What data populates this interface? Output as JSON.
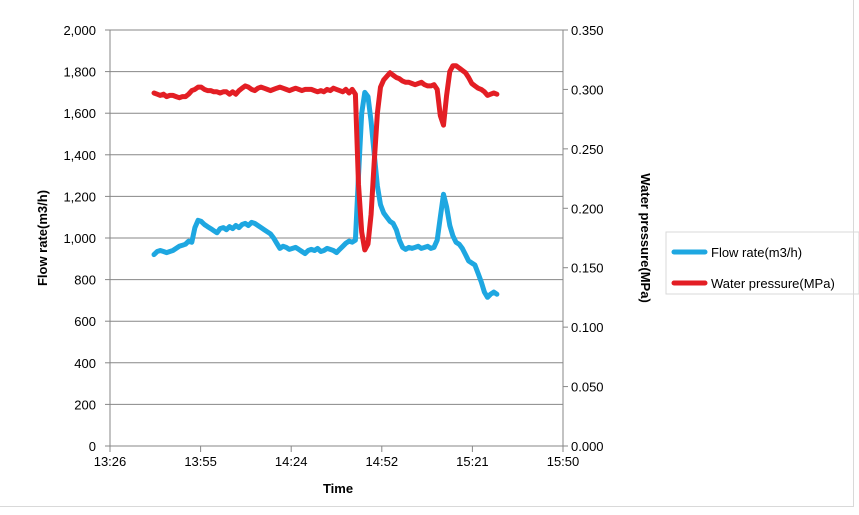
{
  "chart_data": {
    "type": "line",
    "title": "",
    "xlabel": "Time",
    "ylabel": "Flow rate(m3/h)",
    "y2label": "Water pressure(MPa)",
    "xlim_minutes": [
      806,
      950
    ],
    "ylim": [
      0,
      2000
    ],
    "y2lim": [
      0,
      0.35
    ],
    "x_ticks": [
      "13:26",
      "13:55",
      "14:24",
      "14:52",
      "15:21",
      "15:50"
    ],
    "y_ticks": [
      "0",
      "200",
      "400",
      "600",
      "800",
      "1,000",
      "1,200",
      "1,400",
      "1,600",
      "1,800",
      "2,000"
    ],
    "y2_ticks": [
      "0.000",
      "0.050",
      "0.100",
      "0.150",
      "0.200",
      "0.250",
      "0.300",
      "0.350"
    ],
    "grid": true,
    "legend_position": "right",
    "series": [
      {
        "name": "Flow rate(m3/h)",
        "axis": "left",
        "color": "#1ea7e1",
        "points": [
          [
            820,
            920
          ],
          [
            821,
            935
          ],
          [
            822,
            940
          ],
          [
            823,
            935
          ],
          [
            824,
            930
          ],
          [
            825,
            935
          ],
          [
            826,
            940
          ],
          [
            827,
            950
          ],
          [
            828,
            960
          ],
          [
            829,
            965
          ],
          [
            830,
            970
          ],
          [
            831,
            985
          ],
          [
            832,
            980
          ],
          [
            833,
            1050
          ],
          [
            834,
            1085
          ],
          [
            835,
            1080
          ],
          [
            836,
            1065
          ],
          [
            837,
            1055
          ],
          [
            838,
            1045
          ],
          [
            839,
            1035
          ],
          [
            840,
            1025
          ],
          [
            841,
            1045
          ],
          [
            842,
            1050
          ],
          [
            843,
            1040
          ],
          [
            844,
            1055
          ],
          [
            845,
            1045
          ],
          [
            846,
            1060
          ],
          [
            847,
            1050
          ],
          [
            848,
            1065
          ],
          [
            849,
            1070
          ],
          [
            850,
            1060
          ],
          [
            851,
            1075
          ],
          [
            852,
            1070
          ],
          [
            853,
            1060
          ],
          [
            854,
            1050
          ],
          [
            855,
            1040
          ],
          [
            856,
            1030
          ],
          [
            857,
            1020
          ],
          [
            858,
            1000
          ],
          [
            859,
            975
          ],
          [
            860,
            950
          ],
          [
            861,
            960
          ],
          [
            862,
            955
          ],
          [
            863,
            945
          ],
          [
            864,
            950
          ],
          [
            865,
            955
          ],
          [
            866,
            945
          ],
          [
            867,
            935
          ],
          [
            868,
            925
          ],
          [
            869,
            940
          ],
          [
            870,
            945
          ],
          [
            871,
            940
          ],
          [
            872,
            950
          ],
          [
            873,
            935
          ],
          [
            874,
            940
          ],
          [
            875,
            950
          ],
          [
            876,
            945
          ],
          [
            877,
            940
          ],
          [
            878,
            930
          ],
          [
            879,
            945
          ],
          [
            880,
            960
          ],
          [
            881,
            975
          ],
          [
            882,
            985
          ],
          [
            883,
            980
          ],
          [
            884,
            990
          ],
          [
            885,
            1300
          ],
          [
            886,
            1600
          ],
          [
            887,
            1700
          ],
          [
            888,
            1680
          ],
          [
            889,
            1560
          ],
          [
            890,
            1400
          ],
          [
            891,
            1250
          ],
          [
            892,
            1160
          ],
          [
            893,
            1120
          ],
          [
            894,
            1100
          ],
          [
            895,
            1080
          ],
          [
            896,
            1070
          ],
          [
            897,
            1040
          ],
          [
            898,
            990
          ],
          [
            899,
            955
          ],
          [
            900,
            945
          ],
          [
            901,
            955
          ],
          [
            902,
            950
          ],
          [
            903,
            955
          ],
          [
            904,
            960
          ],
          [
            905,
            950
          ],
          [
            906,
            955
          ],
          [
            907,
            960
          ],
          [
            908,
            950
          ],
          [
            909,
            955
          ],
          [
            910,
            990
          ],
          [
            911,
            1100
          ],
          [
            912,
            1210
          ],
          [
            913,
            1150
          ],
          [
            914,
            1060
          ],
          [
            915,
            1010
          ],
          [
            916,
            980
          ],
          [
            917,
            970
          ],
          [
            918,
            950
          ],
          [
            919,
            920
          ],
          [
            920,
            890
          ],
          [
            921,
            880
          ],
          [
            922,
            870
          ],
          [
            923,
            830
          ],
          [
            924,
            790
          ],
          [
            925,
            740
          ],
          [
            926,
            715
          ],
          [
            927,
            730
          ],
          [
            928,
            740
          ],
          [
            929,
            730
          ]
        ]
      },
      {
        "name": "Water pressure(MPa)",
        "axis": "right",
        "color": "#e31e24",
        "points": [
          [
            820,
            0.297
          ],
          [
            821,
            0.296
          ],
          [
            822,
            0.295
          ],
          [
            823,
            0.296
          ],
          [
            824,
            0.294
          ],
          [
            825,
            0.295
          ],
          [
            826,
            0.295
          ],
          [
            827,
            0.294
          ],
          [
            828,
            0.293
          ],
          [
            829,
            0.294
          ],
          [
            830,
            0.294
          ],
          [
            831,
            0.296
          ],
          [
            832,
            0.299
          ],
          [
            833,
            0.3
          ],
          [
            834,
            0.302
          ],
          [
            835,
            0.302
          ],
          [
            836,
            0.3
          ],
          [
            837,
            0.299
          ],
          [
            838,
            0.299
          ],
          [
            839,
            0.298
          ],
          [
            840,
            0.298
          ],
          [
            841,
            0.297
          ],
          [
            842,
            0.298
          ],
          [
            843,
            0.298
          ],
          [
            844,
            0.296
          ],
          [
            845,
            0.298
          ],
          [
            846,
            0.296
          ],
          [
            847,
            0.299
          ],
          [
            848,
            0.301
          ],
          [
            849,
            0.303
          ],
          [
            850,
            0.302
          ],
          [
            851,
            0.3
          ],
          [
            852,
            0.299
          ],
          [
            853,
            0.301
          ],
          [
            854,
            0.302
          ],
          [
            855,
            0.301
          ],
          [
            856,
            0.3
          ],
          [
            857,
            0.299
          ],
          [
            858,
            0.3
          ],
          [
            859,
            0.301
          ],
          [
            860,
            0.302
          ],
          [
            861,
            0.301
          ],
          [
            862,
            0.3
          ],
          [
            863,
            0.299
          ],
          [
            864,
            0.3
          ],
          [
            865,
            0.301
          ],
          [
            866,
            0.3
          ],
          [
            867,
            0.299
          ],
          [
            868,
            0.3
          ],
          [
            869,
            0.3
          ],
          [
            870,
            0.3
          ],
          [
            871,
            0.299
          ],
          [
            872,
            0.298
          ],
          [
            873,
            0.299
          ],
          [
            874,
            0.298
          ],
          [
            875,
            0.3
          ],
          [
            876,
            0.299
          ],
          [
            877,
            0.301
          ],
          [
            878,
            0.3
          ],
          [
            879,
            0.299
          ],
          [
            880,
            0.298
          ],
          [
            881,
            0.3
          ],
          [
            882,
            0.297
          ],
          [
            883,
            0.3
          ],
          [
            884,
            0.296
          ],
          [
            885,
            0.22
          ],
          [
            886,
            0.18
          ],
          [
            887,
            0.165
          ],
          [
            888,
            0.17
          ],
          [
            889,
            0.195
          ],
          [
            890,
            0.24
          ],
          [
            891,
            0.28
          ],
          [
            892,
            0.302
          ],
          [
            893,
            0.308
          ],
          [
            894,
            0.311
          ],
          [
            895,
            0.314
          ],
          [
            896,
            0.312
          ],
          [
            897,
            0.31
          ],
          [
            898,
            0.309
          ],
          [
            899,
            0.307
          ],
          [
            900,
            0.306
          ],
          [
            901,
            0.306
          ],
          [
            902,
            0.305
          ],
          [
            903,
            0.304
          ],
          [
            904,
            0.305
          ],
          [
            905,
            0.306
          ],
          [
            906,
            0.304
          ],
          [
            907,
            0.303
          ],
          [
            908,
            0.303
          ],
          [
            909,
            0.304
          ],
          [
            910,
            0.3
          ],
          [
            911,
            0.278
          ],
          [
            912,
            0.27
          ],
          [
            913,
            0.295
          ],
          [
            914,
            0.315
          ],
          [
            915,
            0.32
          ],
          [
            916,
            0.32
          ],
          [
            917,
            0.318
          ],
          [
            918,
            0.316
          ],
          [
            919,
            0.314
          ],
          [
            920,
            0.31
          ],
          [
            921,
            0.305
          ],
          [
            922,
            0.303
          ],
          [
            923,
            0.301
          ],
          [
            924,
            0.3
          ],
          [
            925,
            0.298
          ],
          [
            926,
            0.295
          ],
          [
            927,
            0.296
          ],
          [
            928,
            0.297
          ],
          [
            929,
            0.296
          ]
        ]
      }
    ]
  }
}
